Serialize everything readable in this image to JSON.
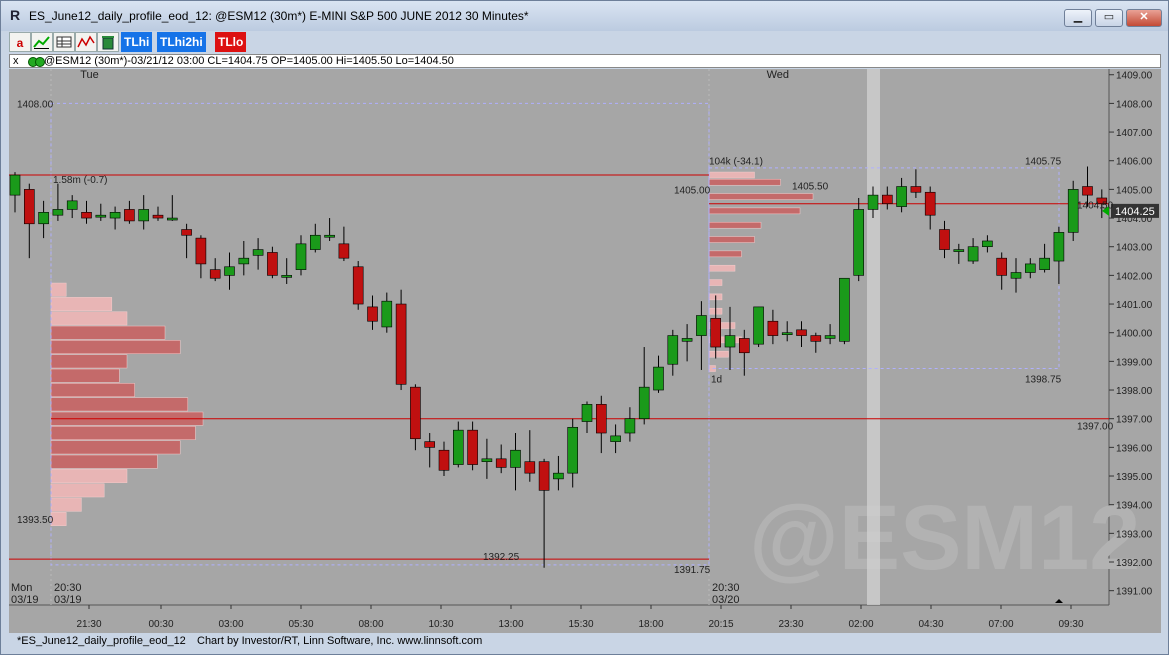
{
  "window": {
    "title": "ES_June12_daily_profile_eod_12: @ESM12 (30m*) E-MINI S&P 500 JUNE 2012 30 Minutes*",
    "app_icon": "R"
  },
  "toolbar": {
    "buttons": [
      "a",
      "",
      "",
      "",
      "",
      "TLhi",
      "TLhi2hi",
      "TLlo"
    ]
  },
  "infobar": {
    "close_glyph": "x",
    "text": "@ESM12 (30m*)-03/21/12 03:00 CL=1404.75 OP=1405.00 Hi=1405.50 Lo=1404.50"
  },
  "chart": {
    "watermark": "@ESM12",
    "day_labels": [
      {
        "text": "Tue",
        "bar": 4
      },
      {
        "text": "Wed",
        "bar": 52
      }
    ],
    "current_price_label": "1404.25",
    "time_labels": [
      "21:30",
      "00:30",
      "03:00",
      "05:30",
      "08:00",
      "10:30",
      "13:00",
      "15:30",
      "18:00",
      "20:15",
      "23:30",
      "02:00",
      "04:30",
      "07:00",
      "09:30"
    ],
    "y_ticks": [
      "1391.00",
      "1392.00",
      "1393.00",
      "1394.00",
      "1395.00",
      "1396.00",
      "1397.00",
      "1398.00",
      "1399.00",
      "1400.00",
      "1401.00",
      "1402.00",
      "1403.00",
      "1404.00",
      "1405.00",
      "1406.00",
      "1407.00",
      "1408.00",
      "1409.00"
    ],
    "bottom_labels": [
      {
        "line1": "Mon",
        "line2": "03/19"
      },
      {
        "line1": "20:30",
        "line2": "03/19"
      },
      {
        "line1": "20:30",
        "line2": "03/20"
      }
    ],
    "annotations": {
      "p1_high": "1408.00",
      "p1_value": "1.58m (-0.7)",
      "p1_low": "1393.50",
      "p1_close_low": "1392.25",
      "p2_value": "104k (-34.1)",
      "p2_left": "1405.00",
      "p2_mid": "1405.50",
      "p2_high": "1405.75",
      "p2_low": "1398.75",
      "p2_period": "1d",
      "low_label": "1391.75",
      "line_1404": "1404.50",
      "line_1397": "1397.00"
    }
  },
  "chart_data": {
    "type": "candlestick",
    "symbol": "@ESM12",
    "interval": "30 Minutes",
    "y_range": [
      1390.5,
      1409.2
    ],
    "bars": [
      {
        "o": 1404.8,
        "h": 1405.6,
        "l": 1404.2,
        "c": 1405.5
      },
      {
        "o": 1405.0,
        "h": 1405.2,
        "l": 1402.6,
        "c": 1403.8
      },
      {
        "o": 1403.8,
        "h": 1404.6,
        "l": 1403.3,
        "c": 1404.2
      },
      {
        "o": 1404.1,
        "h": 1405.2,
        "l": 1403.9,
        "c": 1404.3
      },
      {
        "o": 1404.3,
        "h": 1404.8,
        "l": 1404.0,
        "c": 1404.6
      },
      {
        "o": 1404.2,
        "h": 1404.6,
        "l": 1403.8,
        "c": 1404.0
      },
      {
        "o": 1404.1,
        "h": 1404.5,
        "l": 1403.9,
        "c": 1404.1
      },
      {
        "o": 1404.0,
        "h": 1404.4,
        "l": 1403.6,
        "c": 1404.2
      },
      {
        "o": 1404.3,
        "h": 1404.6,
        "l": 1403.8,
        "c": 1403.9
      },
      {
        "o": 1403.9,
        "h": 1404.8,
        "l": 1403.6,
        "c": 1404.3
      },
      {
        "o": 1404.1,
        "h": 1404.4,
        "l": 1403.9,
        "c": 1404.0
      },
      {
        "o": 1404.0,
        "h": 1404.8,
        "l": 1403.9,
        "c": 1404.0
      },
      {
        "o": 1403.6,
        "h": 1403.8,
        "l": 1402.6,
        "c": 1403.4
      },
      {
        "o": 1403.3,
        "h": 1403.4,
        "l": 1401.9,
        "c": 1402.4
      },
      {
        "o": 1402.2,
        "h": 1402.6,
        "l": 1401.8,
        "c": 1401.9
      },
      {
        "o": 1402.0,
        "h": 1402.8,
        "l": 1401.5,
        "c": 1402.3
      },
      {
        "o": 1402.4,
        "h": 1403.2,
        "l": 1402.0,
        "c": 1402.6
      },
      {
        "o": 1402.7,
        "h": 1403.3,
        "l": 1402.2,
        "c": 1402.9
      },
      {
        "o": 1402.8,
        "h": 1403.0,
        "l": 1401.9,
        "c": 1402.0
      },
      {
        "o": 1402.0,
        "h": 1402.6,
        "l": 1401.7,
        "c": 1402.0
      },
      {
        "o": 1402.2,
        "h": 1403.4,
        "l": 1402.0,
        "c": 1403.1
      },
      {
        "o": 1402.9,
        "h": 1403.8,
        "l": 1402.8,
        "c": 1403.4
      },
      {
        "o": 1403.4,
        "h": 1404.0,
        "l": 1403.2,
        "c": 1403.4
      },
      {
        "o": 1403.1,
        "h": 1403.7,
        "l": 1402.5,
        "c": 1402.6
      },
      {
        "o": 1402.3,
        "h": 1402.5,
        "l": 1400.8,
        "c": 1401.0
      },
      {
        "o": 1400.9,
        "h": 1401.3,
        "l": 1400.1,
        "c": 1400.4
      },
      {
        "o": 1400.2,
        "h": 1401.4,
        "l": 1400.0,
        "c": 1401.1
      },
      {
        "o": 1401.0,
        "h": 1401.5,
        "l": 1398.0,
        "c": 1398.2
      },
      {
        "o": 1398.1,
        "h": 1398.2,
        "l": 1395.9,
        "c": 1396.3
      },
      {
        "o": 1396.2,
        "h": 1396.5,
        "l": 1395.3,
        "c": 1396.0
      },
      {
        "o": 1395.9,
        "h": 1396.2,
        "l": 1395.0,
        "c": 1395.2
      },
      {
        "o": 1395.4,
        "h": 1396.9,
        "l": 1395.3,
        "c": 1396.6
      },
      {
        "o": 1396.6,
        "h": 1396.9,
        "l": 1395.2,
        "c": 1395.4
      },
      {
        "o": 1395.5,
        "h": 1396.3,
        "l": 1394.9,
        "c": 1395.6
      },
      {
        "o": 1395.6,
        "h": 1396.1,
        "l": 1395.1,
        "c": 1395.3
      },
      {
        "o": 1395.3,
        "h": 1396.5,
        "l": 1394.5,
        "c": 1395.9
      },
      {
        "o": 1395.5,
        "h": 1396.6,
        "l": 1394.8,
        "c": 1395.1
      },
      {
        "o": 1395.5,
        "h": 1395.6,
        "l": 1391.8,
        "c": 1394.5
      },
      {
        "o": 1394.9,
        "h": 1395.7,
        "l": 1394.5,
        "c": 1395.1
      },
      {
        "o": 1395.1,
        "h": 1397.0,
        "l": 1394.6,
        "c": 1396.7
      },
      {
        "o": 1396.9,
        "h": 1397.6,
        "l": 1396.5,
        "c": 1397.5
      },
      {
        "o": 1397.5,
        "h": 1397.8,
        "l": 1395.8,
        "c": 1396.5
      },
      {
        "o": 1396.2,
        "h": 1396.8,
        "l": 1395.8,
        "c": 1396.4
      },
      {
        "o": 1396.5,
        "h": 1397.4,
        "l": 1396.2,
        "c": 1397.0
      },
      {
        "o": 1397.0,
        "h": 1399.5,
        "l": 1396.8,
        "c": 1398.1
      },
      {
        "o": 1398.0,
        "h": 1399.2,
        "l": 1397.9,
        "c": 1398.8
      },
      {
        "o": 1398.9,
        "h": 1400.1,
        "l": 1398.5,
        "c": 1399.9
      },
      {
        "o": 1399.7,
        "h": 1400.3,
        "l": 1399.0,
        "c": 1399.8
      },
      {
        "o": 1399.9,
        "h": 1401.1,
        "l": 1398.7,
        "c": 1400.6
      },
      {
        "o": 1400.5,
        "h": 1401.3,
        "l": 1399.1,
        "c": 1399.5
      },
      {
        "o": 1399.5,
        "h": 1400.9,
        "l": 1398.7,
        "c": 1399.9
      },
      {
        "o": 1399.8,
        "h": 1400.1,
        "l": 1398.5,
        "c": 1399.3
      },
      {
        "o": 1399.6,
        "h": 1400.9,
        "l": 1399.5,
        "c": 1400.9
      },
      {
        "o": 1400.4,
        "h": 1400.8,
        "l": 1399.6,
        "c": 1399.9
      },
      {
        "o": 1400.0,
        "h": 1400.4,
        "l": 1399.7,
        "c": 1400.0
      },
      {
        "o": 1400.1,
        "h": 1400.4,
        "l": 1399.5,
        "c": 1399.9
      },
      {
        "o": 1399.9,
        "h": 1400.0,
        "l": 1399.3,
        "c": 1399.7
      },
      {
        "o": 1399.8,
        "h": 1400.3,
        "l": 1399.6,
        "c": 1399.9
      },
      {
        "o": 1399.7,
        "h": 1401.9,
        "l": 1399.6,
        "c": 1401.9
      },
      {
        "o": 1402.0,
        "h": 1404.7,
        "l": 1401.8,
        "c": 1404.3
      },
      {
        "o": 1404.3,
        "h": 1405.1,
        "l": 1404.0,
        "c": 1404.8
      },
      {
        "o": 1404.8,
        "h": 1405.1,
        "l": 1404.3,
        "c": 1404.5
      },
      {
        "o": 1404.4,
        "h": 1405.4,
        "l": 1404.2,
        "c": 1405.1
      },
      {
        "o": 1405.1,
        "h": 1405.7,
        "l": 1404.7,
        "c": 1404.9
      },
      {
        "o": 1404.9,
        "h": 1405.1,
        "l": 1403.6,
        "c": 1404.1
      },
      {
        "o": 1403.6,
        "h": 1403.9,
        "l": 1402.6,
        "c": 1402.9
      },
      {
        "o": 1402.9,
        "h": 1403.1,
        "l": 1402.4,
        "c": 1402.9
      },
      {
        "o": 1402.5,
        "h": 1403.3,
        "l": 1402.4,
        "c": 1403.0
      },
      {
        "o": 1403.0,
        "h": 1403.4,
        "l": 1402.8,
        "c": 1403.2
      },
      {
        "o": 1402.6,
        "h": 1402.8,
        "l": 1401.5,
        "c": 1402.0
      },
      {
        "o": 1401.9,
        "h": 1402.6,
        "l": 1401.4,
        "c": 1402.1
      },
      {
        "o": 1402.1,
        "h": 1402.6,
        "l": 1401.9,
        "c": 1402.4
      },
      {
        "o": 1402.2,
        "h": 1403.1,
        "l": 1402.1,
        "c": 1402.6
      },
      {
        "o": 1402.5,
        "h": 1403.7,
        "l": 1401.7,
        "c": 1403.5
      },
      {
        "o": 1403.5,
        "h": 1405.3,
        "l": 1403.2,
        "c": 1405.0
      },
      {
        "o": 1405.1,
        "h": 1405.8,
        "l": 1404.4,
        "c": 1404.8
      },
      {
        "o": 1404.7,
        "h": 1405.0,
        "l": 1404.0,
        "c": 1404.5
      }
    ],
    "horizontal_lines": [
      1405.5,
      1404.5,
      1397.0,
      1392.1
    ],
    "profile_1": {
      "prices": [
        1393.5,
        1394.0,
        1394.5,
        1395.0,
        1395.5,
        1396.0,
        1396.5,
        1397.0,
        1397.5,
        1398.0,
        1398.5,
        1399.0,
        1399.5,
        1400.0,
        1400.5,
        1401.0,
        1401.5
      ],
      "tpo": [
        2,
        4,
        7,
        10,
        14,
        17,
        19,
        20,
        18,
        11,
        9,
        10,
        17,
        15,
        10,
        8,
        2
      ],
      "value_area_low": 1395.25,
      "value_area_high": 1400.25
    },
    "profile_2": {
      "prices": [
        1398.75,
        1399.25,
        1399.75,
        1400.25,
        1400.75,
        1401.25,
        1401.75,
        1402.25,
        1402.75,
        1403.25,
        1403.75,
        1404.25,
        1404.75,
        1405.25,
        1405.5
      ],
      "tpo": [
        1,
        3,
        5,
        4,
        2,
        2,
        2,
        4,
        5,
        7,
        8,
        14,
        16,
        11,
        7
      ],
      "value_area_low": 1402.5,
      "value_area_high": 1405.25
    }
  }
}
